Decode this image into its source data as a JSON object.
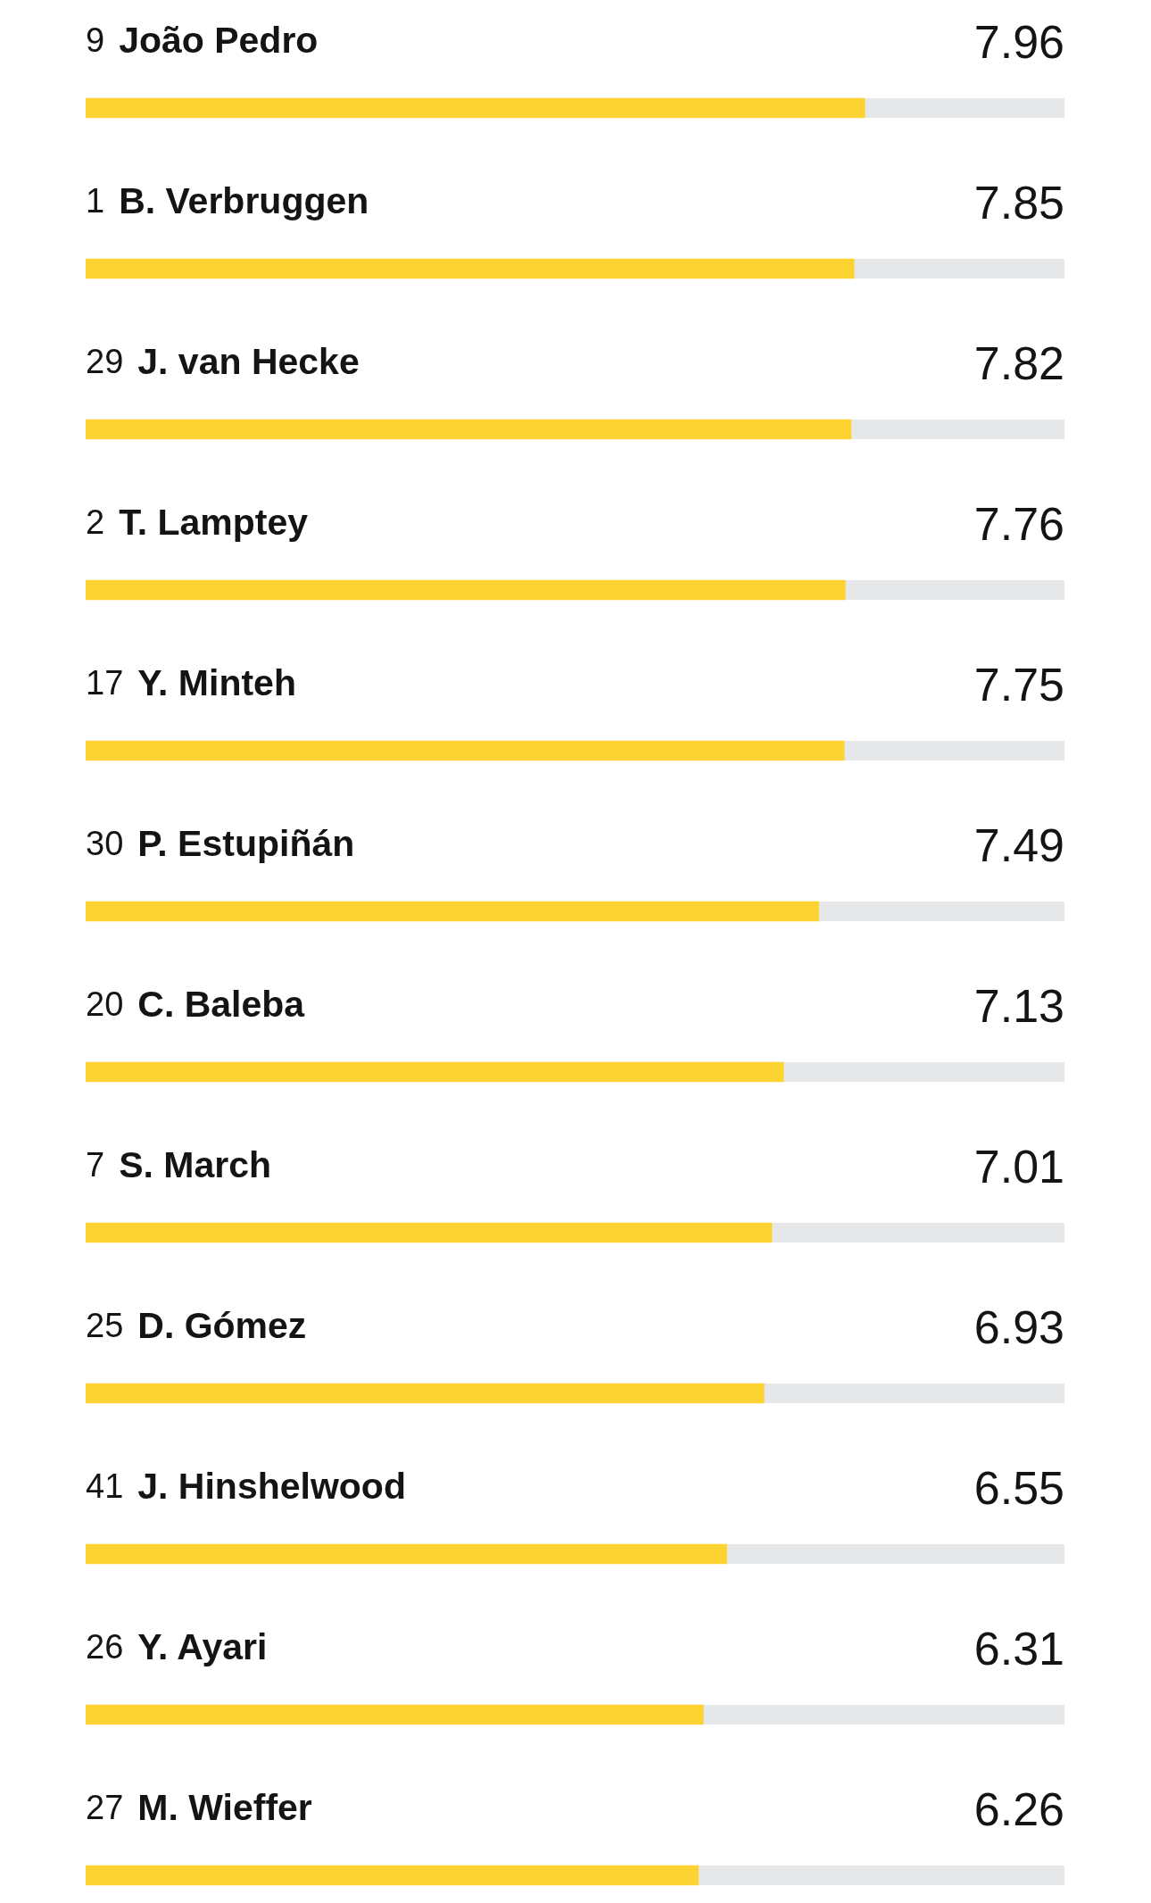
{
  "chart_data": {
    "type": "bar",
    "orientation": "horizontal",
    "categories": [
      "9 João Pedro",
      "1 B. Verbruggen",
      "29 J. van Hecke",
      "2 T. Lamptey",
      "17 Y. Minteh",
      "30 P. Estupiñán",
      "20 C. Baleba",
      "7 S. March",
      "25 D. Gómez",
      "41 J. Hinshelwood",
      "26 Y. Ayari",
      "27 M. Wieffer"
    ],
    "values": [
      7.96,
      7.85,
      7.82,
      7.76,
      7.75,
      7.49,
      7.13,
      7.01,
      6.93,
      6.55,
      6.31,
      6.26
    ],
    "color": "#fdd331",
    "xlim": [
      0,
      10
    ],
    "tick_labels": false,
    "data_labels": true
  }
}
